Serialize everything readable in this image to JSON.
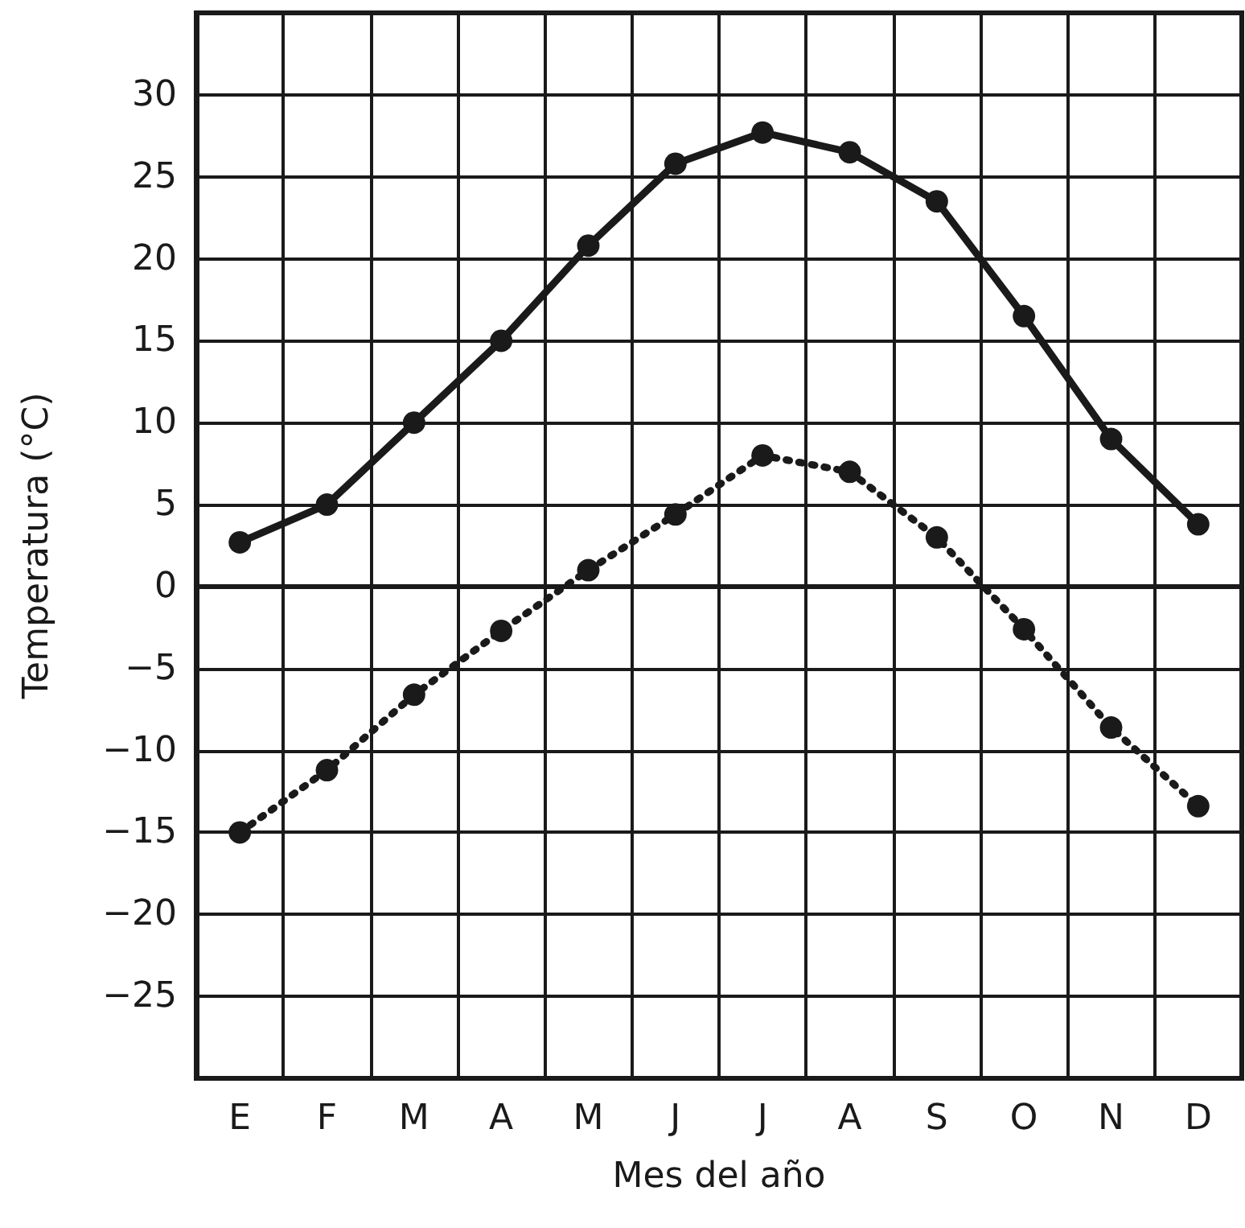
{
  "chart_data": {
    "type": "line",
    "xlabel": "Mes del año",
    "ylabel": "Temperatura (°C)",
    "categories": [
      "E",
      "F",
      "M",
      "A",
      "M",
      "J",
      "J",
      "A",
      "S",
      "O",
      "N",
      "D"
    ],
    "series": [
      {
        "color": "#1a1a1a",
        "line_style": "solid",
        "values": [
          2.7,
          5,
          10,
          15,
          20.8,
          25.8,
          27.7,
          26.5,
          23.5,
          16.5,
          9,
          3.8
        ]
      },
      {
        "color": "#1a1a1a",
        "line_style": "dotted",
        "values": [
          -15,
          -11.2,
          -6.6,
          -2.7,
          1,
          4.4,
          8,
          7,
          3,
          -2.6,
          -8.6,
          -13.4
        ]
      }
    ],
    "ylim": [
      -30,
      35
    ],
    "yticks": [
      {
        "value": -25,
        "label": "−25"
      },
      {
        "value": -20,
        "label": "−20"
      },
      {
        "value": -15,
        "label": "−15"
      },
      {
        "value": -10,
        "label": "−10"
      },
      {
        "value": -5,
        "label": "−5"
      },
      0,
      5,
      10,
      15,
      20,
      25,
      30
    ],
    "grid": true,
    "marker": "circle"
  }
}
